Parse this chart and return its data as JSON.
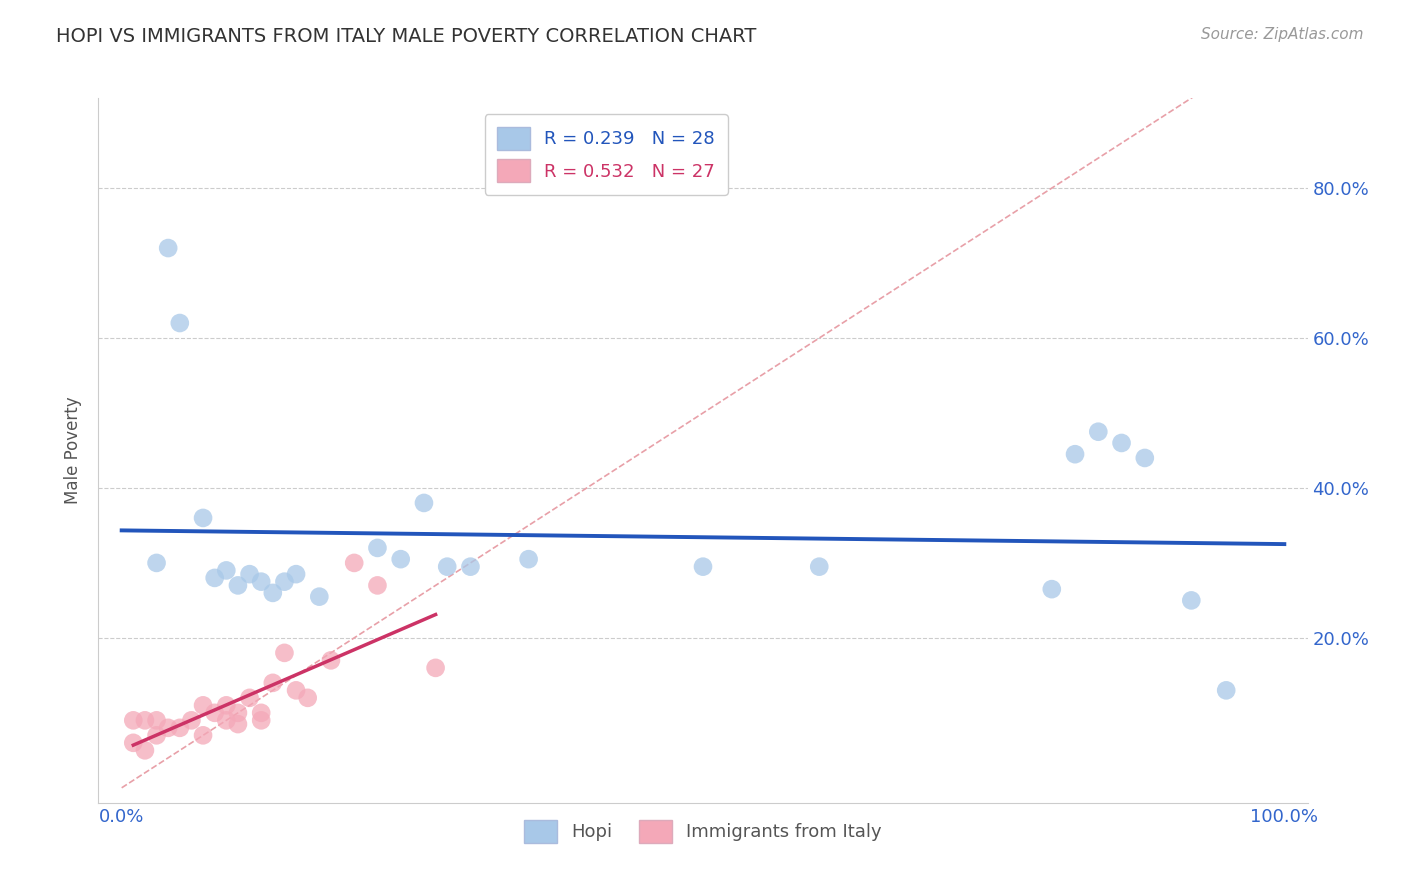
{
  "title": "HOPI VS IMMIGRANTS FROM ITALY MALE POVERTY CORRELATION CHART",
  "source": "Source: ZipAtlas.com",
  "ylabel": "Male Poverty",
  "xlim": [
    -0.02,
    1.02
  ],
  "ylim": [
    -0.02,
    0.92
  ],
  "yticks": [
    0.2,
    0.4,
    0.6,
    0.8
  ],
  "yticklabels": [
    "20.0%",
    "40.0%",
    "60.0%",
    "80.0%"
  ],
  "hopi_color": "#a8c8e8",
  "italy_color": "#f4a8b8",
  "hopi_line_color": "#2255bb",
  "italy_line_color": "#cc3366",
  "diagonal_color": "#e8a0a8",
  "legend_R_hopi": "R = 0.239",
  "legend_N_hopi": "N = 28",
  "legend_R_italy": "R = 0.532",
  "legend_N_italy": "N = 27",
  "hopi_x": [
    0.03,
    0.04,
    0.05,
    0.07,
    0.08,
    0.09,
    0.1,
    0.11,
    0.12,
    0.13,
    0.14,
    0.15,
    0.17,
    0.22,
    0.24,
    0.26,
    0.28,
    0.3,
    0.35,
    0.5,
    0.6,
    0.8,
    0.82,
    0.84,
    0.86,
    0.88,
    0.92,
    0.95
  ],
  "hopi_y": [
    0.3,
    0.72,
    0.62,
    0.36,
    0.28,
    0.29,
    0.27,
    0.285,
    0.275,
    0.26,
    0.275,
    0.285,
    0.255,
    0.32,
    0.305,
    0.38,
    0.295,
    0.295,
    0.305,
    0.295,
    0.295,
    0.265,
    0.445,
    0.475,
    0.46,
    0.44,
    0.25,
    0.13
  ],
  "italy_x": [
    0.01,
    0.01,
    0.02,
    0.02,
    0.03,
    0.03,
    0.04,
    0.05,
    0.06,
    0.07,
    0.07,
    0.08,
    0.09,
    0.09,
    0.1,
    0.1,
    0.11,
    0.12,
    0.12,
    0.13,
    0.14,
    0.15,
    0.16,
    0.18,
    0.2,
    0.22,
    0.27
  ],
  "italy_y": [
    0.06,
    0.09,
    0.05,
    0.09,
    0.07,
    0.09,
    0.08,
    0.08,
    0.09,
    0.11,
    0.07,
    0.1,
    0.09,
    0.11,
    0.085,
    0.1,
    0.12,
    0.1,
    0.09,
    0.14,
    0.18,
    0.13,
    0.12,
    0.17,
    0.3,
    0.27,
    0.16
  ],
  "background_color": "#ffffff",
  "grid_color": "#cccccc"
}
